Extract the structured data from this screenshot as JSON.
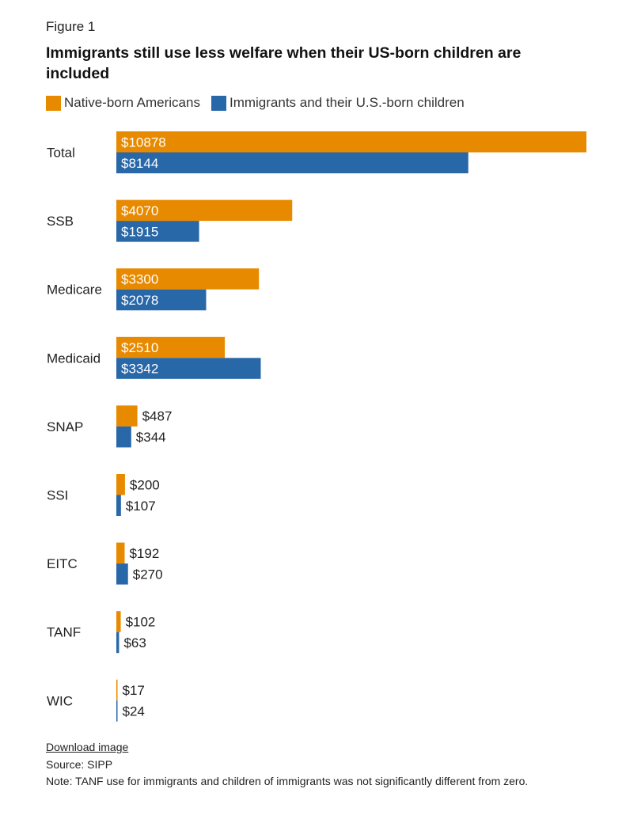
{
  "figure_label": "Figure 1",
  "footer": {
    "download": "Download image",
    "source": "Source: SIPP",
    "note": "Note: TANF use for immigrants and children of immigrants was not significantly different from zero."
  },
  "colors": {
    "native": "#E88A00",
    "immigrant": "#2867A8"
  },
  "chart_data": {
    "type": "bar",
    "orientation": "horizontal",
    "title": "Immigrants still use less welfare when their US-born children are included",
    "categories": [
      "Total",
      "SSB",
      "Medicare",
      "Medicaid",
      "SNAP",
      "SSI",
      "EITC",
      "TANF",
      "WIC"
    ],
    "series": [
      {
        "name": "Native-born Americans",
        "values": [
          10878,
          4070,
          3300,
          2510,
          487,
          200,
          192,
          102,
          17
        ],
        "labels": [
          "$10878",
          "$4070",
          "$3300",
          "$2510",
          "$487",
          "$200",
          "$192",
          "$102",
          "$17"
        ]
      },
      {
        "name": "Immigrants and their U.S.-born children",
        "values": [
          8144,
          1915,
          2078,
          3342,
          344,
          107,
          270,
          63,
          24
        ],
        "labels": [
          "$8144",
          "$1915",
          "$2078",
          "$3342",
          "$344",
          "$107",
          "$270",
          "$63",
          "$24"
        ]
      }
    ],
    "xlim": [
      0,
      10878
    ],
    "legend": "top-left",
    "grid": false
  }
}
